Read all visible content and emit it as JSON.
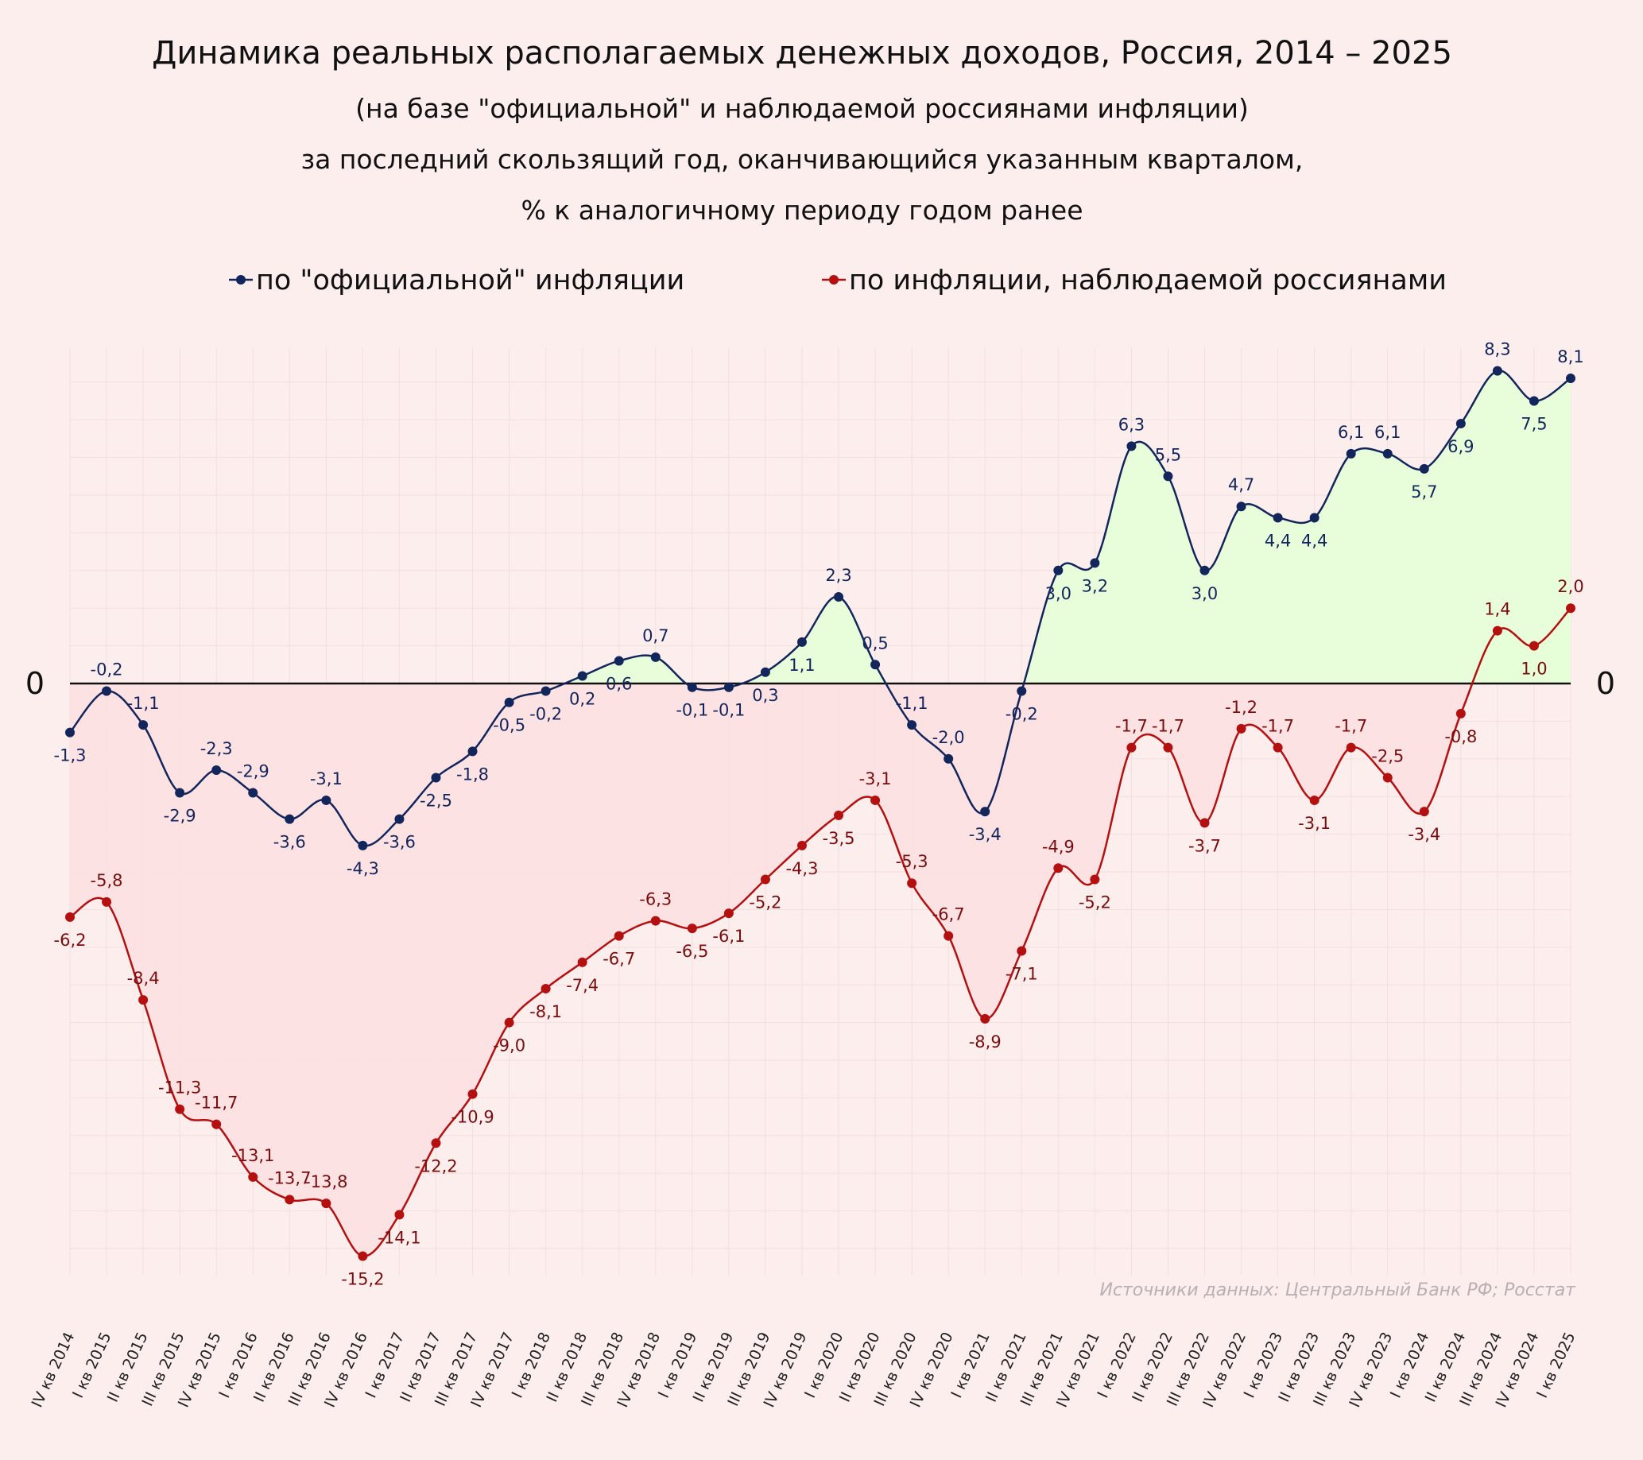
{
  "chart_data": {
    "type": "line",
    "title": "Динамика реальных располагаемых денежных доходов, Россия, 2014 – 2025",
    "subtitle": [
      "(на базе \"официальной\" и наблюдаемой россиянами инфляции)",
      "за последний скользящий год, оканчивающийся указанным кварталом,",
      "% к аналогичному периоду годом ранее"
    ],
    "zero_label": "0",
    "categories": [
      "IV кв 2014",
      "I кв 2015",
      "II кв 2015",
      "III кв 2015",
      "IV кв 2015",
      "I кв 2016",
      "II кв 2016",
      "III кв 2016",
      "IV кв 2016",
      "I кв 2017",
      "II кв 2017",
      "III кв 2017",
      "IV кв 2017",
      "I кв 2018",
      "II кв 2018",
      "III кв 2018",
      "IV кв 2018",
      "I кв 2019",
      "II кв 2019",
      "III кв 2019",
      "IV кв 2019",
      "I кв 2020",
      "II кв 2020",
      "III кв 2020",
      "IV кв 2020",
      "I кв 2021",
      "II кв 2021",
      "III кв 2021",
      "IV кв 2021",
      "I кв 2022",
      "II кв 2022",
      "III кв 2022",
      "IV кв 2022",
      "I кв 2023",
      "II кв 2023",
      "III кв 2023",
      "IV кв 2023",
      "I кв 2024",
      "II кв 2024",
      "III кв 2024",
      "IV кв 2024",
      "I кв 2025"
    ],
    "series": [
      {
        "name": "по \"официальной\" инфляции",
        "color": "#13265c",
        "values": [
          -1.3,
          -0.2,
          -1.1,
          -2.9,
          -2.3,
          -2.9,
          -3.6,
          -3.1,
          -4.3,
          -3.6,
          -2.5,
          -1.8,
          -0.5,
          -0.2,
          0.2,
          0.6,
          0.7,
          -0.1,
          -0.1,
          0.3,
          1.1,
          2.3,
          0.5,
          -1.1,
          -2.0,
          -3.4,
          -0.2,
          3.0,
          3.2,
          6.3,
          5.5,
          3.0,
          4.7,
          4.4,
          4.4,
          6.1,
          6.1,
          5.7,
          6.9,
          8.3,
          7.5,
          8.1
        ],
        "labels": [
          "-1,3",
          "-0,2",
          "-1,1",
          "-2,9",
          "-2,3",
          "-2,9",
          "-3,6",
          "-3,1",
          "-4,3",
          "-3,6",
          "-2,5",
          "-1,8",
          "-0,5",
          "-0,2",
          "0,2",
          "0,6",
          "0,7",
          "-0,1",
          "-0,1",
          "0,3",
          "1,1",
          "2,3",
          "0,5",
          "-1,1",
          "-2,0",
          "-3,4",
          "-0,2",
          "3,0",
          "3,2",
          "6,3",
          "5,5",
          "3,0",
          "4,7",
          "4,4",
          "4,4",
          "6,1",
          "6,1",
          "5,7",
          "6,9",
          "8,3",
          "7,5",
          "8,1"
        ]
      },
      {
        "name": "по инфляции, наблюдаемой россиянами",
        "color": "#b51010",
        "values": [
          -6.2,
          -5.8,
          -8.4,
          -11.3,
          -11.7,
          -13.1,
          -13.7,
          -13.8,
          -15.2,
          -14.1,
          -12.2,
          -10.9,
          -9.0,
          -8.1,
          -7.4,
          -6.7,
          -6.3,
          -6.5,
          -6.1,
          -5.2,
          -4.3,
          -3.5,
          -3.1,
          -5.3,
          -6.7,
          -8.9,
          -7.1,
          -4.9,
          -5.2,
          -1.7,
          -1.7,
          -3.7,
          -1.2,
          -1.7,
          -3.1,
          -1.7,
          -2.5,
          -3.4,
          -0.8,
          1.4,
          1.0,
          2.0
        ],
        "labels": [
          "-6,2",
          "-5,8",
          "-8,4",
          "-11,3",
          "-11,7",
          "-13,1",
          "-13,7",
          "-13,8",
          "-15,2",
          "-14,1",
          "-12,2",
          "-10,9",
          "-9,0",
          "-8,1",
          "-7,4",
          "-6,7",
          "-6,3",
          "-6,5",
          "-6,1",
          "-5,2",
          "-4,3",
          "-3,5",
          "-3,1",
          "-5,3",
          "-6,7",
          "-8,9",
          "-7,1",
          "-4,9",
          "-5,2",
          "-1,7",
          "-1,7",
          "-3,7",
          "-1,2",
          "-1,7",
          "-3,1",
          "-1,7",
          "-2,5",
          "-3,4",
          "-0,8",
          "1,4",
          "1,0",
          "2,0"
        ]
      }
    ],
    "legend_position": "top-center",
    "positive_fill": "#e6ffd8",
    "negative_fill": "#fde0e2",
    "background": "#fdeeee",
    "grid": true,
    "ylim": [
      -15.5,
      8.5
    ],
    "source": "Источники данных: Центральный Банк РФ; Росстат"
  }
}
